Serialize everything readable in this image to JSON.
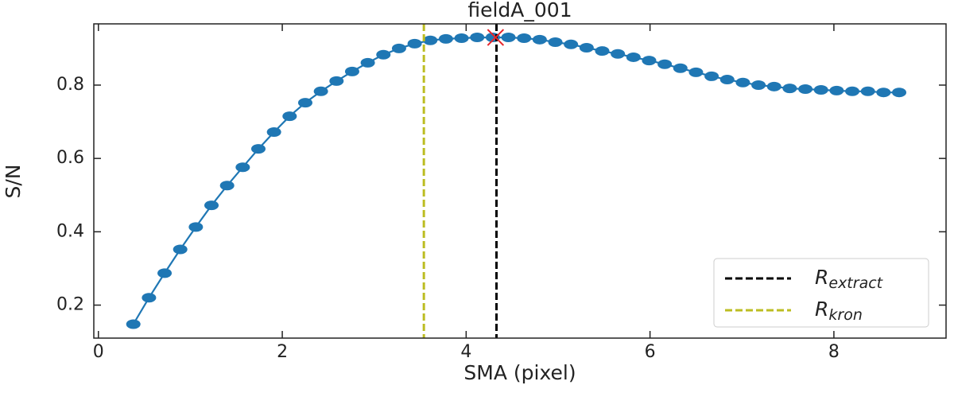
{
  "chart_data": {
    "type": "line",
    "title": "fieldA_001",
    "xlabel": "SMA (pixel)",
    "ylabel": "S/N",
    "x": [
      0.38,
      0.55,
      0.72,
      0.89,
      1.06,
      1.23,
      1.4,
      1.57,
      1.74,
      1.91,
      2.08,
      2.25,
      2.42,
      2.59,
      2.76,
      2.93,
      3.1,
      3.27,
      3.44,
      3.61,
      3.78,
      3.95,
      4.12,
      4.29,
      4.46,
      4.63,
      4.8,
      4.97,
      5.14,
      5.31,
      5.48,
      5.65,
      5.82,
      5.99,
      6.16,
      6.33,
      6.5,
      6.67,
      6.84,
      7.01,
      7.18,
      7.35,
      7.52,
      7.69,
      7.86,
      8.03,
      8.2,
      8.37,
      8.54,
      8.71
    ],
    "series": [
      {
        "color": "#1f77b4",
        "values": [
          0.148,
          0.22,
          0.287,
          0.352,
          0.413,
          0.472,
          0.526,
          0.576,
          0.626,
          0.672,
          0.715,
          0.752,
          0.783,
          0.811,
          0.837,
          0.861,
          0.883,
          0.9,
          0.913,
          0.922,
          0.926,
          0.928,
          0.93,
          0.93,
          0.93,
          0.928,
          0.924,
          0.917,
          0.911,
          0.902,
          0.893,
          0.885,
          0.876,
          0.867,
          0.857,
          0.846,
          0.835,
          0.824,
          0.815,
          0.807,
          0.8,
          0.796,
          0.791,
          0.789,
          0.787,
          0.785,
          0.783,
          0.783,
          0.78,
          0.78
        ]
      }
    ],
    "vlines": [
      {
        "label": "R",
        "sub": "extract",
        "x": 4.33,
        "color": "#000000"
      },
      {
        "label": "R",
        "sub": "kron",
        "x": 3.54,
        "color": "#bcbd22"
      }
    ],
    "peak": {
      "x": 4.32,
      "y": 0.93,
      "color": "#e8252a"
    },
    "xlim": [
      -0.05,
      9.22
    ],
    "ylim": [
      0.11,
      0.967
    ],
    "xticks": [
      0,
      2,
      4,
      6,
      8
    ],
    "yticks": [
      0.2,
      0.4,
      0.6,
      0.8
    ],
    "legend": "lower right"
  }
}
